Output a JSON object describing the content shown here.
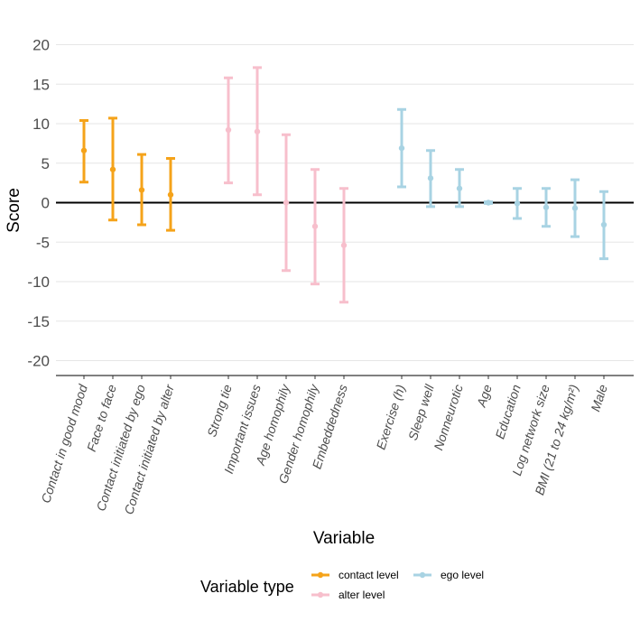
{
  "chart_data": {
    "type": "errorbar",
    "xlabel": "Variable",
    "ylabel": "Score",
    "ylim": [
      -22,
      22
    ],
    "yticks": [
      20,
      15,
      10,
      5,
      0,
      -5,
      -10,
      -15,
      -20
    ],
    "grid": true,
    "legend": {
      "title": "Variable type",
      "placement": "bottom",
      "entries": [
        {
          "key": "contact",
          "label": "contact level",
          "color": "#f5a31a"
        },
        {
          "key": "alter",
          "label": "alter level",
          "color": "#f7bfcc"
        },
        {
          "key": "ego",
          "label": "ego level",
          "color": "#a8d3e3"
        }
      ]
    },
    "groups": [
      {
        "key": "contact",
        "items": [
          {
            "label": "Contact in good mood",
            "estimate": 6.6,
            "lower": 2.6,
            "upper": 10.4
          },
          {
            "label": "Face to face",
            "estimate": 4.2,
            "lower": -2.2,
            "upper": 10.7
          },
          {
            "label": "Contact initiated by ego",
            "estimate": 1.6,
            "lower": -2.8,
            "upper": 6.1
          },
          {
            "label": "Contact initiated by alter",
            "estimate": 1.0,
            "lower": -3.5,
            "upper": 5.6
          }
        ]
      },
      {
        "key": "alter",
        "items": [
          {
            "label": "Strong tie",
            "estimate": 9.2,
            "lower": 2.5,
            "upper": 15.8
          },
          {
            "label": "Important issues",
            "estimate": 9.0,
            "lower": 1.0,
            "upper": 17.1
          },
          {
            "label": "Age homophily",
            "estimate": 0.0,
            "lower": -8.6,
            "upper": 8.6
          },
          {
            "label": "Gender homophily",
            "estimate": -3.0,
            "lower": -10.3,
            "upper": 4.2
          },
          {
            "label": "Embeddedness",
            "estimate": -5.4,
            "lower": -12.6,
            "upper": 1.8
          }
        ]
      },
      {
        "key": "ego",
        "items": [
          {
            "label": "Exercise (h)",
            "estimate": 6.9,
            "lower": 2.0,
            "upper": 11.8
          },
          {
            "label": "Sleep well",
            "estimate": 3.1,
            "lower": -0.5,
            "upper": 6.6
          },
          {
            "label": "Nonneurotic",
            "estimate": 1.8,
            "lower": -0.5,
            "upper": 4.2
          },
          {
            "label": "Age",
            "estimate": 0.0,
            "lower": -0.1,
            "upper": 0.1
          },
          {
            "label": "Education",
            "estimate": -0.1,
            "lower": -2.0,
            "upper": 1.8
          },
          {
            "label": "Log network size",
            "estimate": -0.6,
            "lower": -3.0,
            "upper": 1.8
          },
          {
            "label": "BMI (21 to 24 kg/m²)",
            "estimate": -0.7,
            "lower": -4.3,
            "upper": 2.9
          },
          {
            "label": "Male",
            "estimate": -2.8,
            "lower": -7.1,
            "upper": 1.4
          }
        ]
      }
    ]
  }
}
